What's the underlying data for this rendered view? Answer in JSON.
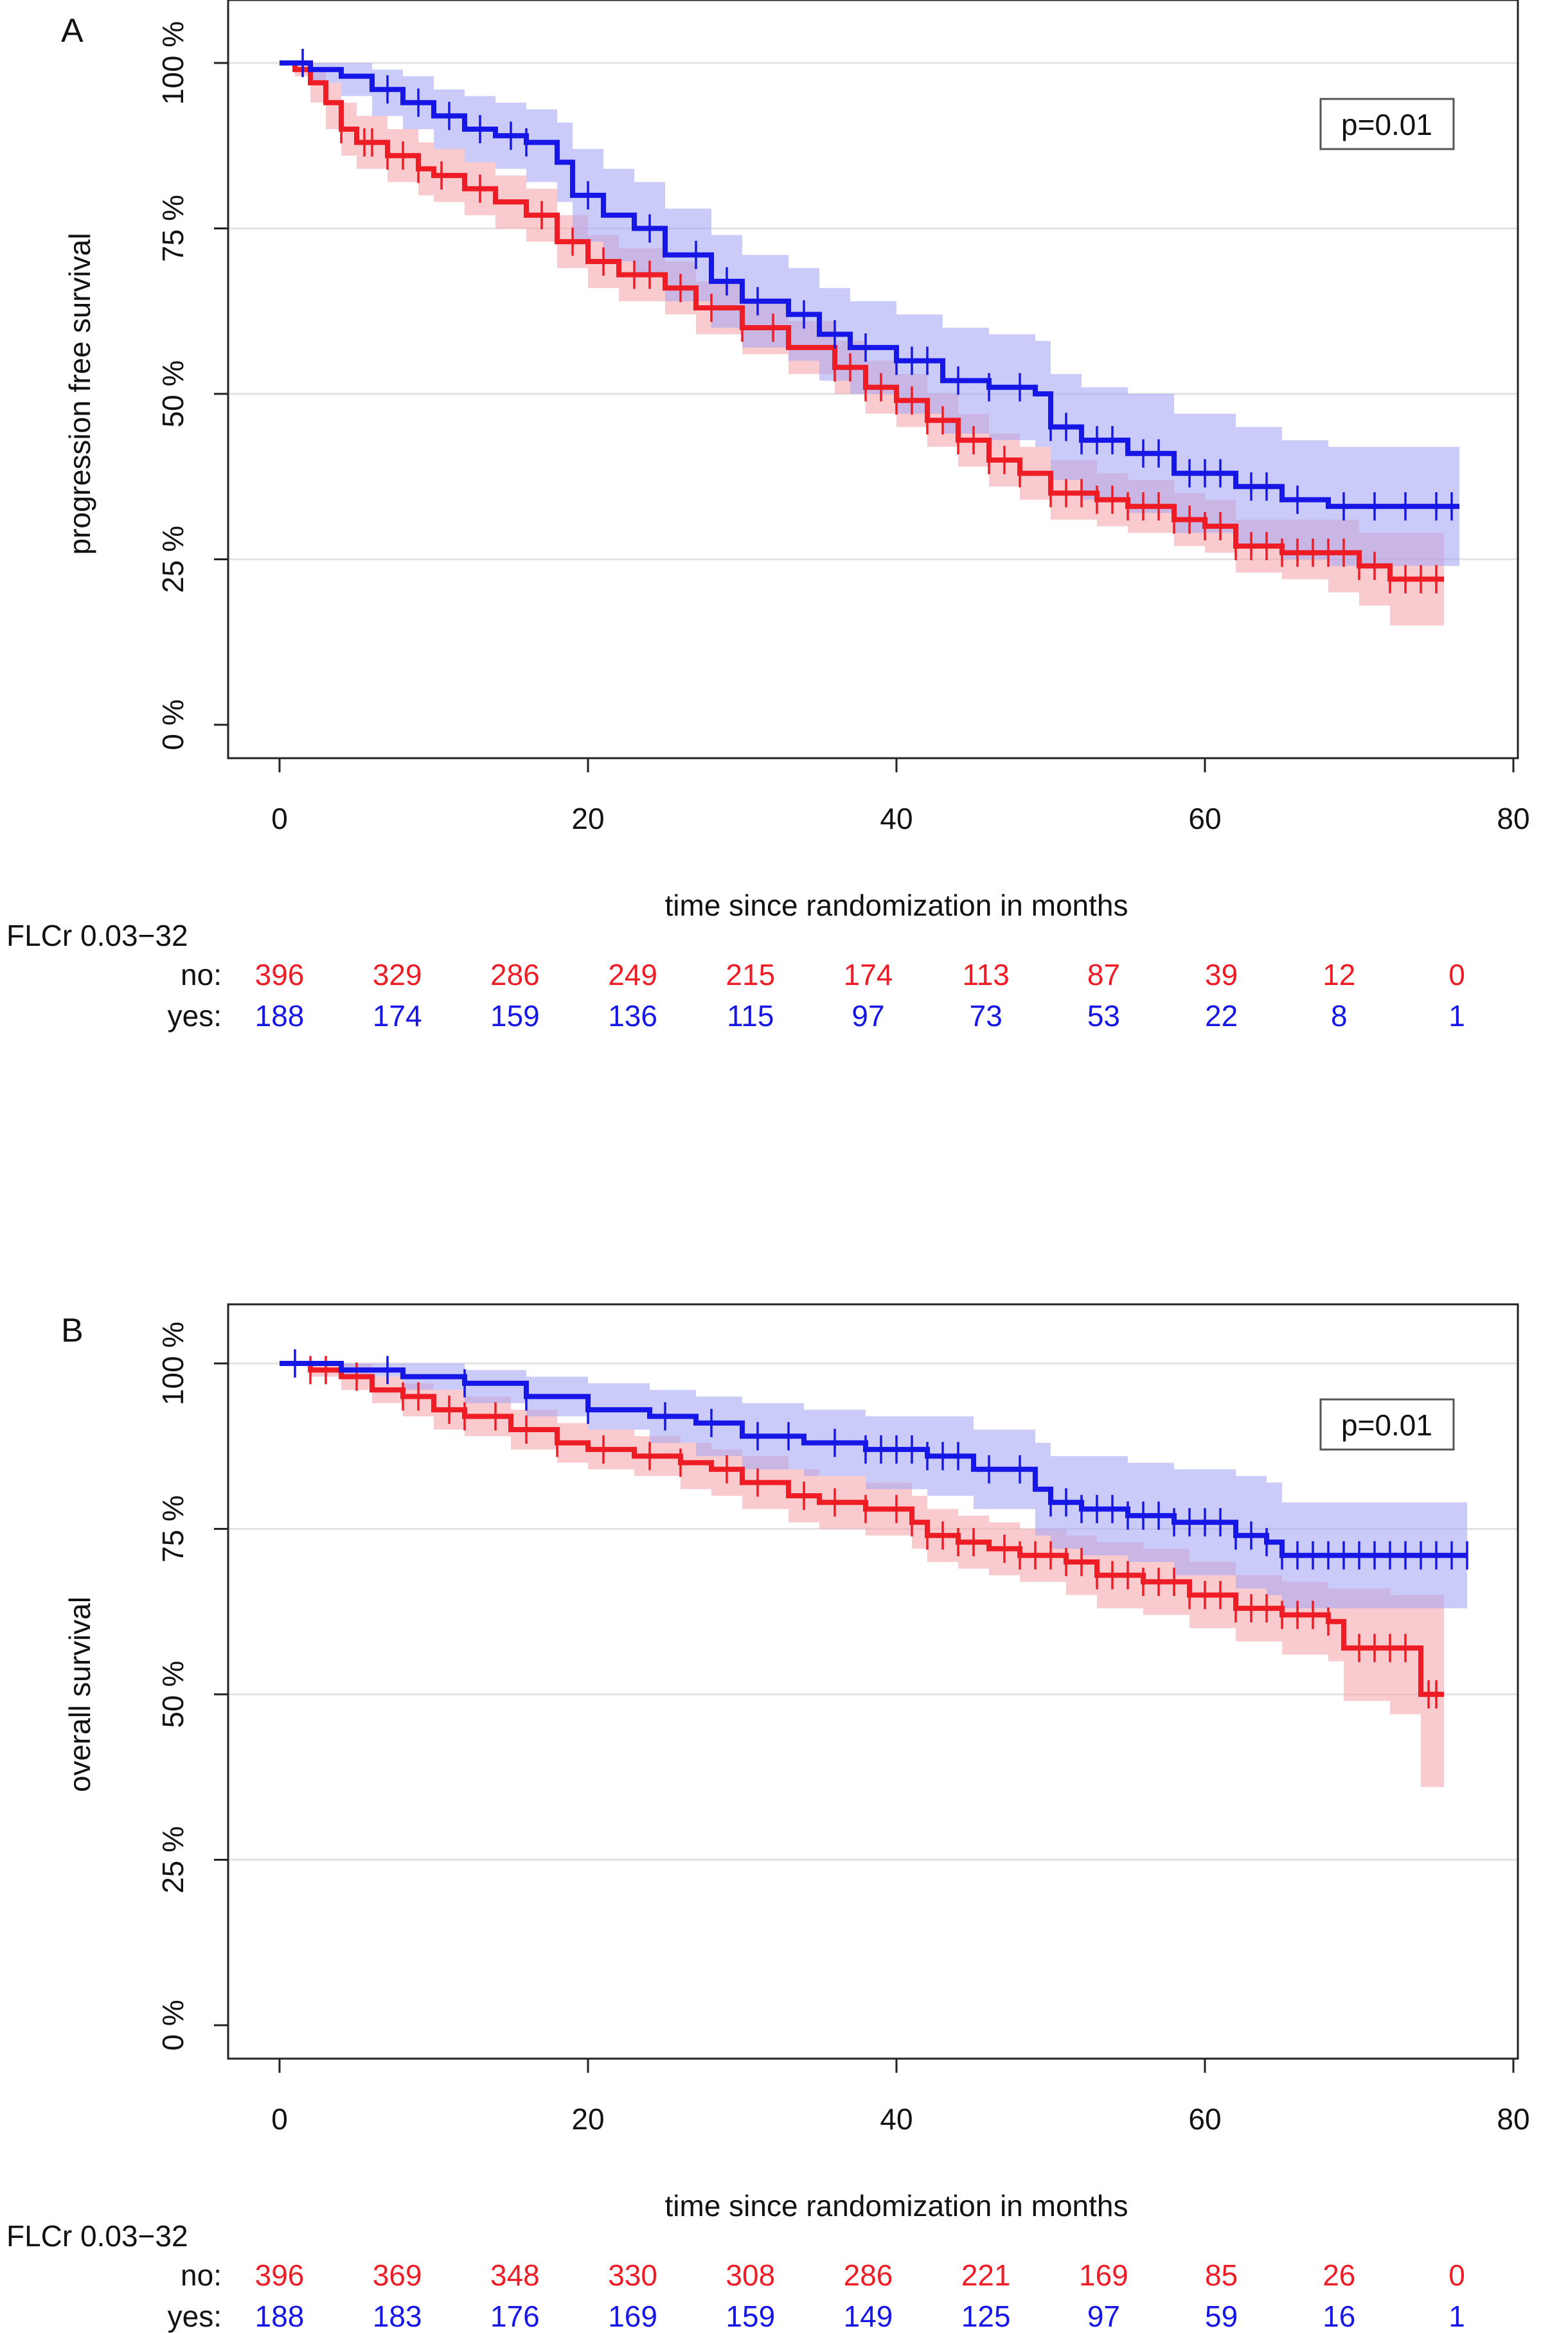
{
  "colors": {
    "red": "#ee1d25",
    "blue": "#1616e6",
    "red_band": "#f7a8ad",
    "blue_band": "#a8a8f5",
    "grid": "#e2e2e2"
  },
  "chart_data": [
    {
      "type": "line",
      "panel_label": "A",
      "title": "",
      "xlabel": "time since randomization in months",
      "ylabel": "progression free survival",
      "xlim": [
        0,
        80
      ],
      "ylim": [
        0,
        100
      ],
      "x_ticks": [
        "0",
        "20",
        "40",
        "60",
        "80"
      ],
      "y_ticks": [
        "0 %",
        "25 %",
        "50 %",
        "75 %",
        "100 %"
      ],
      "grid": true,
      "pvalue": "p=0.01",
      "risk_table": {
        "title": "FLCr 0.03−32",
        "times": [
          0,
          7.6,
          15.2,
          22.8,
          30.4,
          38,
          45.6,
          53.2,
          60.8,
          68.4,
          76
        ],
        "rows": [
          {
            "label": "no:",
            "color": "red",
            "values": [
              "396",
              "329",
              "286",
              "249",
              "215",
              "174",
              "113",
              "87",
              "39",
              "12",
              "0"
            ]
          },
          {
            "label": "yes:",
            "color": "blue",
            "values": [
              "188",
              "174",
              "159",
              "136",
              "115",
              "97",
              "73",
              "53",
              "22",
              "8",
              "1"
            ]
          }
        ]
      },
      "series": [
        {
          "name": "no",
          "color": "red",
          "x": [
            0,
            1,
            2,
            3,
            4,
            5,
            7,
            9,
            10,
            12,
            14,
            16,
            18,
            20,
            22,
            25,
            27,
            30,
            33,
            36,
            38,
            40,
            42,
            44,
            46,
            48,
            50,
            53,
            55,
            58,
            60,
            62,
            65,
            68,
            70,
            72,
            75.5
          ],
          "y": [
            100,
            99,
            97,
            94,
            90,
            88,
            86,
            84,
            83,
            81,
            79,
            77,
            73,
            70,
            68,
            66,
            63,
            60,
            57,
            54,
            51,
            49,
            46,
            43,
            40,
            38,
            35,
            34,
            33,
            31,
            30,
            27,
            26,
            26,
            24,
            22,
            22
          ],
          "ci_lower": [
            100,
            98,
            94,
            90,
            86,
            84,
            82,
            80,
            79,
            77,
            75,
            73,
            69,
            66,
            64,
            62,
            59,
            56,
            53,
            50,
            47,
            45,
            42,
            39,
            36,
            34,
            31,
            30,
            29,
            27,
            26,
            23,
            22,
            20,
            18,
            15,
            15
          ],
          "ci_upper": [
            100,
            100,
            99,
            97,
            94,
            92,
            90,
            88,
            87,
            85,
            83,
            81,
            77,
            74,
            72,
            70,
            67,
            64,
            61,
            58,
            55,
            53,
            50,
            47,
            44,
            42,
            40,
            38,
            37,
            35,
            34,
            31,
            31,
            31,
            29,
            29,
            29
          ],
          "censor_times": [
            4,
            5.5,
            6,
            7,
            8,
            9,
            10.5,
            13,
            17,
            19,
            21,
            23,
            24,
            26,
            28,
            30,
            32,
            36,
            37,
            38,
            39,
            40,
            41,
            42,
            43,
            44,
            45,
            46,
            47,
            48,
            50,
            51,
            52,
            53,
            54,
            55,
            56,
            57,
            58,
            59,
            60,
            61,
            62,
            63,
            64,
            65,
            66,
            67,
            68,
            69,
            70,
            71,
            72,
            73,
            74,
            75
          ]
        },
        {
          "name": "yes",
          "color": "blue",
          "x": [
            0,
            2,
            4,
            6,
            8,
            10,
            12,
            14,
            16,
            18,
            19,
            21,
            23,
            25,
            28,
            30,
            33,
            35,
            37,
            40,
            43,
            46,
            49,
            50,
            52,
            55,
            58,
            62,
            65,
            68,
            72,
            76.5
          ],
          "y": [
            100,
            99,
            98,
            96,
            94,
            92,
            90,
            89,
            88,
            85,
            80,
            77,
            75,
            71,
            67,
            64,
            62,
            59,
            57,
            55,
            52,
            51,
            50,
            45,
            43,
            41,
            38,
            36,
            34,
            33,
            33,
            33
          ],
          "ci_lower": [
            100,
            97,
            95,
            92,
            90,
            87,
            85,
            84,
            82,
            79,
            73,
            70,
            68,
            64,
            60,
            57,
            55,
            52,
            50,
            47,
            44,
            43,
            42,
            37,
            34,
            32,
            29,
            27,
            25,
            24,
            24,
            24
          ],
          "ci_upper": [
            100,
            100,
            100,
            99,
            98,
            96,
            95,
            94,
            93,
            91,
            87,
            84,
            82,
            78,
            74,
            71,
            69,
            66,
            64,
            62,
            60,
            59,
            58,
            53,
            51,
            50,
            47,
            45,
            43,
            42,
            42,
            42
          ],
          "censor_times": [
            1.5,
            7,
            9,
            11,
            13,
            15,
            16,
            20,
            24,
            27,
            29,
            31,
            34,
            36,
            38,
            40,
            41,
            42,
            44,
            46,
            48,
            50,
            51,
            52,
            53,
            54,
            56,
            57,
            59,
            60,
            61,
            63,
            64,
            66,
            69,
            71,
            73,
            75,
            76
          ]
        }
      ]
    },
    {
      "type": "line",
      "panel_label": "B",
      "title": "",
      "xlabel": "time since randomization in months",
      "ylabel": "overall survival",
      "xlim": [
        0,
        80
      ],
      "ylim": [
        0,
        100
      ],
      "x_ticks": [
        "0",
        "20",
        "40",
        "60",
        "80"
      ],
      "y_ticks": [
        "0 %",
        "25 %",
        "50 %",
        "75 %",
        "100 %"
      ],
      "grid": true,
      "pvalue": "p=0.01",
      "risk_table": {
        "title": "FLCr 0.03−32",
        "times": [
          0,
          7.6,
          15.2,
          22.8,
          30.4,
          38,
          45.6,
          53.2,
          60.8,
          68.4,
          76
        ],
        "rows": [
          {
            "label": "no:",
            "color": "red",
            "values": [
              "396",
              "369",
              "348",
              "330",
              "308",
              "286",
              "221",
              "169",
              "85",
              "26",
              "0"
            ]
          },
          {
            "label": "yes:",
            "color": "blue",
            "values": [
              "188",
              "183",
              "176",
              "169",
              "159",
              "149",
              "125",
              "97",
              "59",
              "16",
              "1"
            ]
          }
        ]
      },
      "series": [
        {
          "name": "no",
          "color": "red",
          "x": [
            0,
            2,
            4,
            6,
            8,
            10,
            12,
            15,
            18,
            20,
            23,
            26,
            28,
            30,
            33,
            35,
            38,
            41,
            42,
            44,
            46,
            48,
            51,
            53,
            56,
            59,
            62,
            65,
            68,
            69,
            72,
            73.5,
            74,
            75.5
          ],
          "y": [
            100,
            99,
            98,
            96,
            95,
            93,
            92,
            90,
            88,
            87,
            86,
            85,
            84,
            82,
            80,
            79,
            78,
            76,
            74,
            73,
            72,
            71,
            70,
            68,
            67,
            65,
            63,
            62,
            61,
            57,
            57,
            57,
            50,
            50
          ],
          "ci_lower": [
            100,
            98,
            96,
            94,
            92,
            90,
            89,
            87,
            85,
            84,
            83,
            81,
            80,
            78,
            76,
            75,
            74,
            72,
            70,
            69,
            68,
            67,
            65,
            63,
            62,
            60,
            58,
            56,
            55,
            49,
            47,
            47,
            36,
            36
          ],
          "ci_upper": [
            100,
            100,
            100,
            98,
            97,
            96,
            95,
            93,
            91,
            90,
            89,
            88,
            87,
            86,
            84,
            83,
            82,
            80,
            78,
            77,
            76,
            75,
            74,
            73,
            72,
            70,
            68,
            67,
            66,
            66,
            65,
            65,
            65,
            65
          ],
          "censor_times": [
            2,
            3,
            5,
            8,
            9,
            11,
            12,
            14,
            16,
            18,
            21,
            24,
            26,
            29,
            31,
            34,
            36,
            38,
            40,
            41,
            42,
            43,
            44,
            45,
            47,
            48,
            49,
            50,
            51,
            52,
            53,
            54,
            55,
            56,
            57,
            58,
            59,
            60,
            61,
            62,
            63,
            64,
            65,
            66,
            67,
            68,
            70,
            71,
            72,
            73,
            74.5,
            75
          ]
        },
        {
          "name": "yes",
          "color": "blue",
          "x": [
            0,
            4,
            8,
            12,
            16,
            20,
            24,
            27,
            30,
            34,
            38,
            42,
            45,
            49,
            50,
            52,
            55,
            58,
            62,
            64,
            65,
            68,
            72,
            77
          ],
          "y": [
            100,
            99,
            98,
            97,
            95,
            93,
            92,
            91,
            89,
            88,
            87,
            86,
            84,
            81,
            79,
            78,
            77,
            76,
            74,
            73,
            71,
            71,
            71,
            71
          ],
          "ci_lower": [
            100,
            98,
            96,
            94,
            92,
            90,
            88,
            86,
            84,
            83,
            81,
            80,
            78,
            74,
            72,
            71,
            70,
            68,
            66,
            65,
            63,
            63,
            63,
            63
          ],
          "ci_upper": [
            100,
            100,
            100,
            99,
            98,
            97,
            96,
            95,
            94,
            93,
            92,
            92,
            90,
            88,
            86,
            86,
            85,
            84,
            83,
            82,
            79,
            79,
            79,
            79
          ],
          "censor_times": [
            1,
            7,
            12,
            16,
            20,
            25,
            28,
            31,
            33,
            36,
            38,
            39,
            40,
            41,
            42,
            43,
            44,
            46,
            48,
            50,
            51,
            52,
            53,
            54,
            55,
            56,
            57,
            58,
            59,
            60,
            61,
            62,
            63,
            64,
            65,
            66,
            67,
            68,
            69,
            70,
            71,
            72,
            73,
            74,
            75,
            76,
            77
          ]
        }
      ]
    }
  ]
}
